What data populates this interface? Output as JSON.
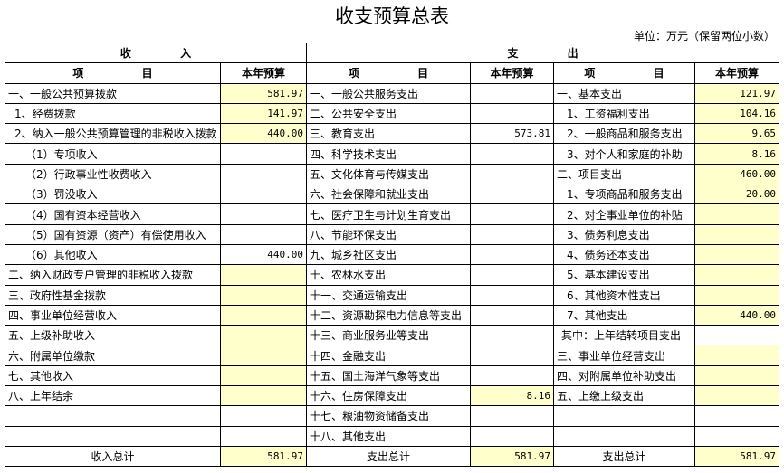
{
  "header": {
    "title": "收支预算总表",
    "unit": "单位：万元（保留两位小数）"
  },
  "table": {
    "groups": [
      "收 入",
      "支 出"
    ],
    "columns": [
      "项 目",
      "本年预算",
      "项 目",
      "本年预算",
      "项 目",
      "本年预算"
    ],
    "rows": [
      [
        "一、一般公共预算拨款",
        "581.97",
        "一、一般公共服务支出",
        null,
        "一、基本支出",
        "121.97"
      ],
      [
        "1、经费拨款",
        "141.97",
        "二、公共安全支出",
        null,
        "1、工资福利支出",
        "104.16"
      ],
      [
        "2、纳入一般公共预算管理的非税收入拨款",
        "440.00",
        "三、教育支出",
        "573.81",
        "2、一般商品和服务支出",
        "9.65"
      ],
      [
        "（1）专项收入",
        null,
        "四、科学技术支出",
        null,
        "3、对个人和家庭的补助",
        "8.16"
      ],
      [
        "（2）行政事业性收费收入",
        null,
        "五、文化体育与传媒支出",
        null,
        "二、项目支出",
        "460.00"
      ],
      [
        "（3）罚没收入",
        null,
        "六、社会保障和就业支出",
        null,
        "1、专项商品和服务支出",
        "20.00"
      ],
      [
        "（4）国有资本经营收入",
        null,
        "七、医疗卫生与计划生育支出",
        null,
        "2、对企事业单位的补贴",
        null
      ],
      [
        "（5）国有资源（资产）有偿使用收入",
        null,
        "八、节能环保支出",
        null,
        "3、债务利息支出",
        null
      ],
      [
        "（6）其他收入",
        "440.00",
        "九、城乡社区支出",
        null,
        "4、债务还本支出",
        null
      ],
      [
        "二、纳入财政专户管理的非税收入拨款",
        null,
        "十、农林水支出",
        null,
        "5、基本建设支出",
        null
      ],
      [
        "三、政府性基金拨款",
        null,
        "十一、交通运输支出",
        null,
        "6、其他资本性支出",
        null
      ],
      [
        "四、事业单位经营收入",
        null,
        "十二、资源勘探电力信息等支出",
        null,
        "7、其他支出",
        "440.00"
      ],
      [
        "五、上级补助收入",
        null,
        "十三、商业服务业等支出",
        null,
        "其中：上年结转项目支出",
        null
      ],
      [
        "六、附属单位缴款",
        null,
        "十四、金融支出",
        null,
        "三、事业单位经营支出",
        null
      ],
      [
        "七、其他收入",
        null,
        "十五、国土海洋气象等支出",
        null,
        "四、对附属单位补助支出",
        null
      ],
      [
        "八、上年结余",
        null,
        "十六、住房保障支出",
        "8.16",
        "五、上缴上级支出",
        null
      ],
      [
        null,
        null,
        "十七、粮油物资储备支出",
        null,
        null,
        null
      ],
      [
        null,
        null,
        "十八、其他支出",
        null,
        null,
        null
      ]
    ],
    "total": [
      "收入总计",
      "581.97",
      "支出总计",
      "581.97",
      "支出总计",
      "581.97"
    ]
  }
}
